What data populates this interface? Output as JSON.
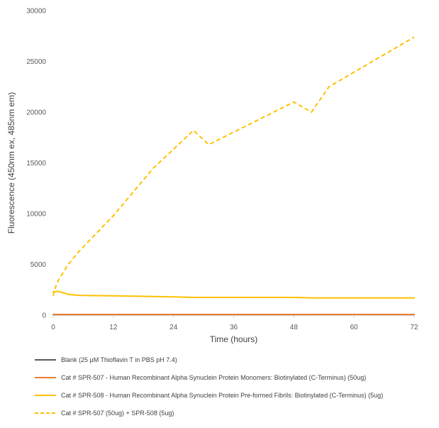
{
  "chart_data": {
    "type": "line",
    "title": "",
    "xlabel": "Time (hours)",
    "ylabel": "Fluorescence (450nm ex, 485nm em)",
    "xlim": [
      0,
      72
    ],
    "ylim": [
      0,
      30000
    ],
    "xticks": [
      0,
      12,
      24,
      36,
      48,
      60,
      72
    ],
    "yticks": [
      0,
      5000,
      10000,
      15000,
      20000,
      25000,
      30000
    ],
    "grid": false,
    "legend_position": "bottom",
    "series": [
      {
        "name": "Blank (25 µM Thioflavin T in PBS pH 7.4)",
        "color": "#595959",
        "dash": "solid",
        "points": [
          [
            0,
            50
          ],
          [
            24,
            50
          ],
          [
            48,
            50
          ],
          [
            60,
            60
          ],
          [
            72,
            50
          ]
        ]
      },
      {
        "name": "Cat # SPR-507 - Human Recombinant Alpha Synuclein Protein Monomers: Biotinylated (C-Terminus) (50ug)",
        "color": "#ED7D31",
        "dash": "solid",
        "points": [
          [
            0,
            60
          ],
          [
            24,
            60
          ],
          [
            48,
            60
          ],
          [
            60,
            60
          ],
          [
            72,
            60
          ]
        ]
      },
      {
        "name": "Cat # SPR-508 - Human Recombinant Alpha Synuclein Protein Pre-formed Fibrils: Biotinylated (C-Terminus) (5ug)",
        "color": "#FFC000",
        "dash": "solid",
        "points": [
          [
            0,
            2300
          ],
          [
            1,
            2350
          ],
          [
            2,
            2200
          ],
          [
            3,
            2050
          ],
          [
            5,
            1950
          ],
          [
            12,
            1900
          ],
          [
            24,
            1800
          ],
          [
            28,
            1750
          ],
          [
            36,
            1750
          ],
          [
            48,
            1750
          ],
          [
            52,
            1700
          ],
          [
            60,
            1700
          ],
          [
            72,
            1700
          ]
        ]
      },
      {
        "name": "Cat # SPR-507 (50ug) +  SPR-508 (5ug)",
        "color": "#FFC000",
        "dash": "dashed",
        "points": [
          [
            0,
            1900
          ],
          [
            0.5,
            2800
          ],
          [
            1,
            3400
          ],
          [
            2,
            4200
          ],
          [
            3,
            5000
          ],
          [
            5,
            6200
          ],
          [
            12,
            9800
          ],
          [
            20,
            14500
          ],
          [
            28,
            18200
          ],
          [
            31,
            16800
          ],
          [
            48,
            21000
          ],
          [
            51.5,
            20000
          ],
          [
            55,
            22500
          ],
          [
            72,
            27400
          ]
        ]
      }
    ]
  }
}
